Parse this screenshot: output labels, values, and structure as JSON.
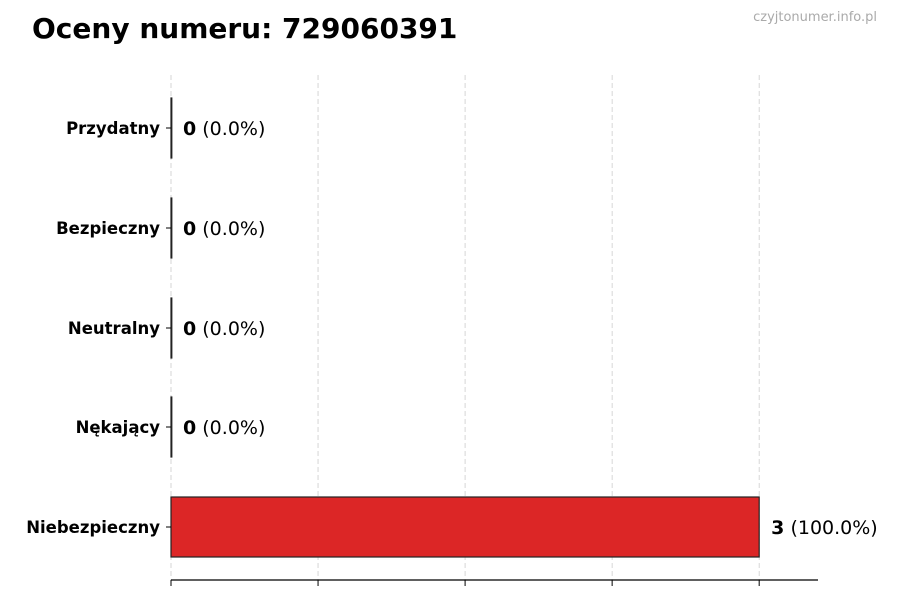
{
  "chart_data": {
    "type": "bar",
    "orientation": "horizontal",
    "title": "Oceny numeru: 729060391",
    "watermark": "czyjtonumer.info.pl",
    "categories": [
      "Przydatny",
      "Bezpieczny",
      "Neutralny",
      "Nękający",
      "Niebezpieczny"
    ],
    "values": [
      0,
      0,
      0,
      0,
      3
    ],
    "data_labels": [
      {
        "count": "0",
        "percent": "(0.0%)"
      },
      {
        "count": "0",
        "percent": "(0.0%)"
      },
      {
        "count": "0",
        "percent": "(0.0%)"
      },
      {
        "count": "0",
        "percent": "(0.0%)"
      },
      {
        "count": "3",
        "percent": "(100.0%)"
      }
    ],
    "bar_colors": [
      "#2e9e3e",
      "#2e9e3e",
      "#999999",
      "#e07020",
      "#dc2626"
    ],
    "xlim": [
      0,
      3.3
    ],
    "xticks": [
      0,
      0.75,
      1.5,
      2.25,
      3
    ],
    "xtick_labels_visible": false,
    "grid": "x dashed",
    "xlabel": "",
    "ylabel": ""
  }
}
